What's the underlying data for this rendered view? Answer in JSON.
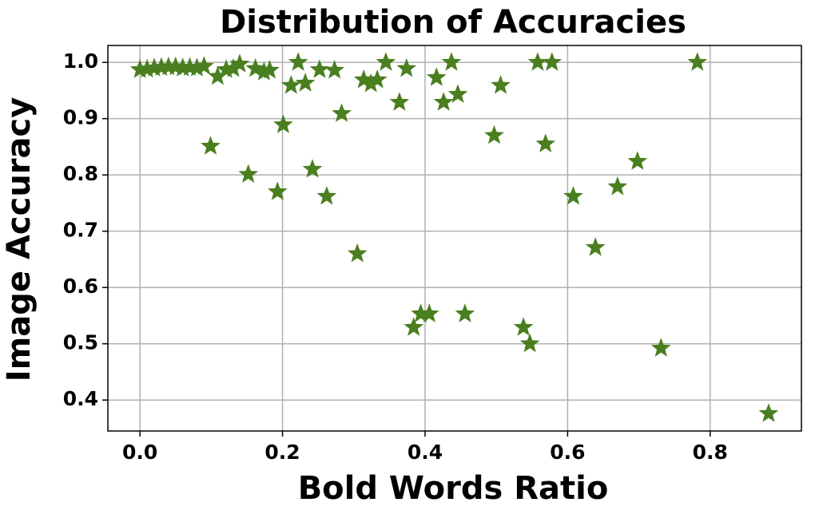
{
  "chart_data": {
    "type": "scatter",
    "title": "Distribution of Accuracies",
    "x_label": "Bold Words Ratio",
    "y_label": "Image Accuracy",
    "color": "#4a7f20",
    "marker": "star",
    "grid": true,
    "xlim": [
      -0.045,
      0.928
    ],
    "ylim": [
      0.345,
      1.03
    ],
    "xticks": [
      {
        "value": 0,
        "label": "0.0"
      },
      0.2,
      0.4,
      0.6,
      0.8
    ],
    "yticks": [
      0.4,
      0.5,
      0.6,
      0.7,
      0.8,
      0.9,
      {
        "value": 1,
        "label": "1.0"
      }
    ],
    "x": [
      0.0,
      0.01,
      0.02,
      0.03,
      0.04,
      0.05,
      0.06,
      0.07,
      0.08,
      0.09,
      0.099,
      0.109,
      0.121,
      0.131,
      0.14,
      0.152,
      0.162,
      0.174,
      0.182,
      0.193,
      0.201,
      0.212,
      0.222,
      0.232,
      0.242,
      0.252,
      0.262,
      0.273,
      0.283,
      0.305,
      0.314,
      0.324,
      0.333,
      0.345,
      0.364,
      0.374,
      0.384,
      0.394,
      0.406,
      0.416,
      0.426,
      0.437,
      0.446,
      0.456,
      0.497,
      0.506,
      0.538,
      0.547,
      0.558,
      0.569,
      0.578,
      0.608,
      0.639,
      0.67,
      0.698,
      0.731,
      0.782,
      0.882
    ],
    "values": [
      0.987,
      0.988,
      0.99,
      0.991,
      0.992,
      0.992,
      0.99,
      0.991,
      0.99,
      0.993,
      0.851,
      0.975,
      0.987,
      0.989,
      0.997,
      0.801,
      0.989,
      0.983,
      0.986,
      0.77,
      0.889,
      0.959,
      1.0,
      0.963,
      0.81,
      0.987,
      0.762,
      0.986,
      0.909,
      0.66,
      0.969,
      0.962,
      0.969,
      1.0,
      0.929,
      0.989,
      0.529,
      0.553,
      0.553,
      0.973,
      0.929,
      1.0,
      0.943,
      0.553,
      0.87,
      0.959,
      0.529,
      0.5,
      1.0,
      0.855,
      1.0,
      0.762,
      0.671,
      0.779,
      0.824,
      0.492,
      1.0,
      0.376
    ]
  }
}
